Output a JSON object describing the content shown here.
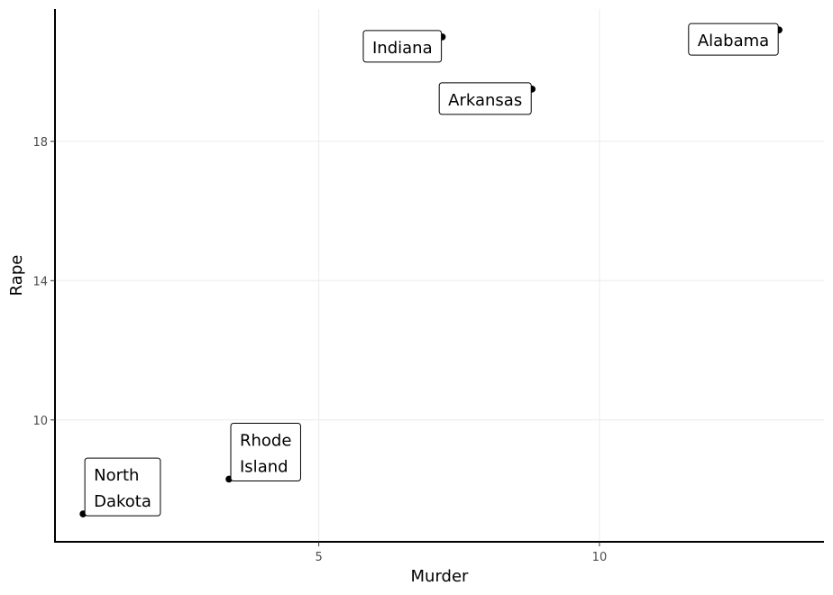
{
  "chart_data": {
    "type": "scatter",
    "xlabel": "Murder",
    "ylabel": "Rape",
    "xlim": [
      0.3,
      14.0
    ],
    "ylim": [
      6.5,
      21.8
    ],
    "x_ticks": [
      5,
      10
    ],
    "y_ticks": [
      10,
      14,
      18
    ],
    "grid": true,
    "points": [
      {
        "label": "Alabama",
        "lines": [
          "Alabama"
        ],
        "x": 13.2,
        "y": 21.2
      },
      {
        "label": "Indiana",
        "lines": [
          "Indiana"
        ],
        "x": 7.2,
        "y": 21.0
      },
      {
        "label": "Arkansas",
        "lines": [
          "Arkansas"
        ],
        "x": 8.8,
        "y": 19.5
      },
      {
        "label": "Rhode Island",
        "lines": [
          "Rhode",
          "Island"
        ],
        "x": 3.4,
        "y": 8.3
      },
      {
        "label": "North Dakota",
        "lines": [
          "North",
          "Dakota"
        ],
        "x": 0.8,
        "y": 7.3
      }
    ]
  }
}
